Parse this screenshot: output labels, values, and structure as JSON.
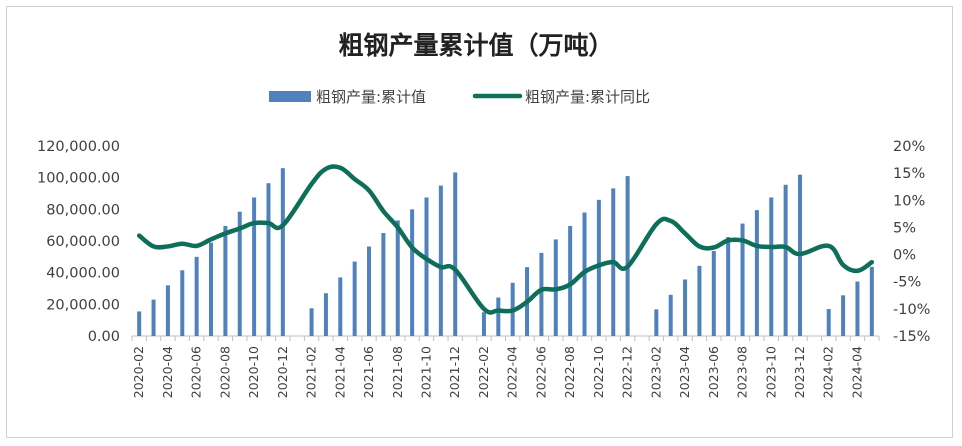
{
  "chart_data": {
    "type": "bar+line",
    "title": "粗钢产量累计值（万吨）",
    "legend": {
      "position": "top",
      "entries": [
        {
          "label": "粗钢产量:累计值",
          "mark": "bar"
        },
        {
          "label": "粗钢产量:累计同比",
          "mark": "line"
        }
      ]
    },
    "colors": {
      "bar": "#4f81bd",
      "line": "#0e6e5a",
      "axis": "#bfbfbf",
      "frame": "#d0d0d0"
    },
    "x_ticks": [
      "2020-02",
      "2020-04",
      "2020-06",
      "2020-08",
      "2020-10",
      "2020-12",
      "2021-02",
      "2021-04",
      "2021-06",
      "2021-08",
      "2021-10",
      "2021-12",
      "2022-02",
      "2022-04",
      "2022-06",
      "2022-08",
      "2022-10",
      "2022-12",
      "2023-02",
      "2023-04",
      "2023-06",
      "2023-08",
      "2023-10",
      "2023-12",
      "2024-02",
      "2024-04"
    ],
    "y_left": {
      "ticks": [
        "0.00",
        "20,000.00",
        "40,000.00",
        "60,000.00",
        "80,000.00",
        "100,000.00",
        "120,000.00"
      ],
      "range": [
        0,
        120000
      ]
    },
    "y_right": {
      "ticks": [
        "-15%",
        "-10%",
        "-5%",
        "0%",
        "5%",
        "10%",
        "15%",
        "20%"
      ],
      "range": [
        -15,
        20
      ]
    },
    "grid": false,
    "categories": [
      "2020-02",
      "2020-03",
      "2020-04",
      "2020-05",
      "2020-06",
      "2020-07",
      "2020-08",
      "2020-09",
      "2020-10",
      "2020-11",
      "2020-12",
      "2021-01",
      "2021-02",
      "2021-03",
      "2021-04",
      "2021-05",
      "2021-06",
      "2021-07",
      "2021-08",
      "2021-09",
      "2021-10",
      "2021-11",
      "2021-12",
      "2022-01",
      "2022-02",
      "2022-03",
      "2022-04",
      "2022-05",
      "2022-06",
      "2022-07",
      "2022-08",
      "2022-09",
      "2022-10",
      "2022-11",
      "2022-12",
      "2023-01",
      "2023-02",
      "2023-03",
      "2023-04",
      "2023-05",
      "2023-06",
      "2023-07",
      "2023-08",
      "2023-09",
      "2023-10",
      "2023-11",
      "2023-12",
      "2024-01",
      "2024-02",
      "2024-03",
      "2024-04",
      "2024-05"
    ],
    "series": [
      {
        "name": "粗钢产量:累计值",
        "type": "bar",
        "axis": "left",
        "values": [
          15500,
          23000,
          32000,
          41500,
          50000,
          59000,
          69500,
          78500,
          87500,
          96500,
          106000,
          null,
          17500,
          27000,
          37000,
          47000,
          56500,
          65000,
          73000,
          80000,
          87500,
          95000,
          103300,
          null,
          15000,
          24300,
          33600,
          43500,
          52500,
          61000,
          69500,
          78000,
          86000,
          93200,
          101000,
          null,
          16800,
          26000,
          35700,
          44300,
          53700,
          62500,
          71000,
          79500,
          87500,
          95500,
          101900,
          null,
          17000,
          25700,
          34400,
          43700
        ]
      },
      {
        "name": "粗钢产量:累计同比",
        "type": "line",
        "axis": "right",
        "values": [
          3.5,
          1.5,
          1.5,
          2.0,
          1.6,
          2.8,
          3.9,
          4.8,
          5.8,
          5.8,
          5.4,
          null,
          13.0,
          15.8,
          16.0,
          13.9,
          11.8,
          8.0,
          5.0,
          1.3,
          -0.8,
          -2.3,
          -2.8,
          null,
          -10.0,
          -10.3,
          -10.3,
          -8.7,
          -6.5,
          -6.4,
          -5.5,
          -3.2,
          -2.0,
          -1.4,
          -2.2,
          null,
          5.6,
          6.2,
          3.9,
          1.5,
          1.3,
          2.6,
          2.6,
          1.6,
          1.4,
          1.4,
          0.1,
          null,
          1.6,
          -1.9,
          -3.0,
          -1.4
        ]
      }
    ]
  }
}
